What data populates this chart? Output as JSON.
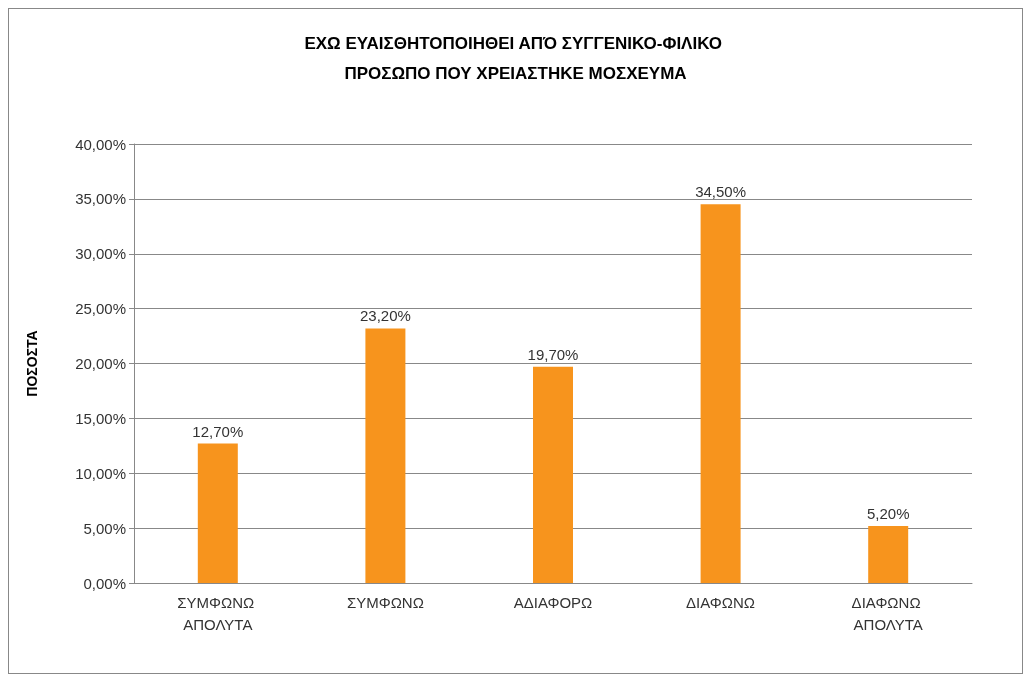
{
  "chart_data": {
    "type": "bar",
    "title": "ΕΧΩ ΕΥΑΙΣΘΗΤΟΠΟΙΗΘΕΙ ΑΠΌ ΣΥΓΓΕΝΙΚΟ-ΦΙΛΙΚΟ ΠΡΟΣΩΠΟ ΠΟΥ ΧΡΕΙΑΣΤΗΚΕ ΜΟΣΧΕΥΜΑ",
    "ylabel": "ΠΟΣΟΣΤΑ",
    "categories": [
      "ΣΥΜΦΩΝΩ ΑΠΟΛΥΤΑ",
      "ΣΥΜΦΩΝΩ",
      "ΑΔΙΑΦΟΡΩ",
      "ΔΙΑΦΩΝΩ",
      "ΔΙΑΦΩΝΩ ΑΠΟΛΥΤΑ"
    ],
    "values": [
      12.7,
      23.2,
      19.7,
      34.5,
      5.2
    ],
    "value_labels": [
      "12,70%",
      "23,20%",
      "19,70%",
      "34,50%",
      "5,20%"
    ],
    "color": "#f7941d",
    "ylim": [
      0,
      40
    ],
    "yticks": [
      {
        "value": 0,
        "label": "0,00%"
      },
      {
        "value": 5,
        "label": "5,00%"
      },
      {
        "value": 10,
        "label": "10,00%"
      },
      {
        "value": 15,
        "label": "15,00%"
      },
      {
        "value": 20,
        "label": "20,00%"
      },
      {
        "value": 25,
        "label": "25,00%"
      },
      {
        "value": 30,
        "label": "30,00%"
      },
      {
        "value": 35,
        "label": "35,00%"
      },
      {
        "value": 40,
        "label": "40,00%"
      }
    ],
    "grid": "y"
  }
}
